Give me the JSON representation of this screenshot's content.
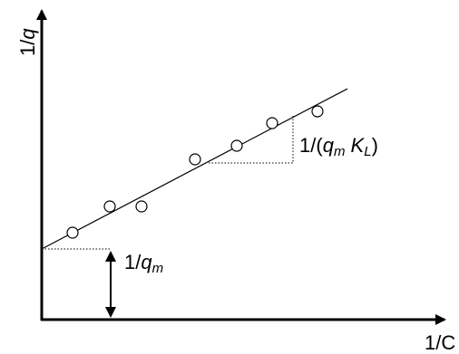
{
  "axes": {
    "y_label": [
      "1/",
      "q"
    ],
    "x_label": "1/C"
  },
  "annotations": {
    "slope_label": [
      "1/(",
      "q",
      "m",
      " K",
      "L",
      ")"
    ],
    "intercept_label": [
      "1/",
      "q",
      "m"
    ]
  }
}
